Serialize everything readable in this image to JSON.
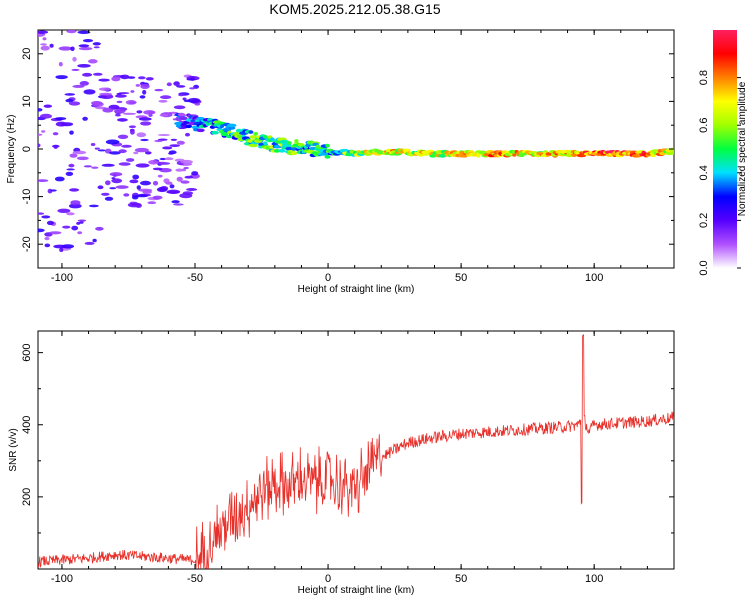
{
  "chart_data": [
    {
      "type": "heatmap",
      "title": "KOM5.2025.212.05.38.G15",
      "xlabel": "Height of straight line (km)",
      "ylabel": "Frequency (Hz)",
      "xlim": [
        -109,
        130
      ],
      "ylim": [
        -25,
        25
      ],
      "xticks": [
        "-100",
        "-50",
        "0",
        "50",
        "100"
      ],
      "yticks": [
        "-20",
        "-10",
        "0",
        "10",
        "20"
      ],
      "colorbar": {
        "label": "Normalized spectral amplitude",
        "range": [
          0,
          1
        ],
        "ticks": [
          "0.0",
          "0.2",
          "0.4",
          "0.6",
          "0.8"
        ],
        "colors": [
          "#ffffff",
          "#b050ff",
          "#5500ff",
          "#0000ff",
          "#00e0ff",
          "#00ff40",
          "#a0ff00",
          "#ffff00",
          "#ff8000",
          "#ff0000",
          "#ff2060"
        ]
      },
      "ridge": {
        "heights_km": [
          -55,
          -45,
          -35,
          -25,
          -15,
          -5,
          0,
          10,
          20,
          40,
          60,
          80,
          100,
          120,
          130
        ],
        "frequency_hz": [
          6,
          5,
          3.5,
          1.5,
          0.5,
          0,
          -0.5,
          -1,
          -0.5,
          -1,
          -1,
          -1,
          -1,
          -1,
          -0.5
        ],
        "amplitude": [
          0.2,
          0.35,
          0.45,
          0.5,
          0.5,
          0.45,
          0.4,
          0.55,
          0.7,
          0.6,
          0.75,
          0.65,
          0.85,
          0.8,
          0.6
        ]
      }
    },
    {
      "type": "line",
      "xlabel": "Height of straight line (km)",
      "ylabel": "SNR (v/v)",
      "xlim": [
        -109,
        130
      ],
      "ylim": [
        0,
        660
      ],
      "xticks": [
        "-100",
        "-50",
        "0",
        "50",
        "100"
      ],
      "yticks": [
        "200",
        "400",
        "600"
      ],
      "color": "#e8302a",
      "x": [
        -109,
        -100,
        -90,
        -80,
        -70,
        -60,
        -52,
        -48,
        -45,
        -40,
        -35,
        -30,
        -25,
        -20,
        -15,
        -10,
        -5,
        0,
        5,
        10,
        15,
        18,
        20,
        25,
        30,
        40,
        50,
        60,
        70,
        80,
        90,
        94,
        96,
        98,
        100,
        110,
        120,
        125,
        130
      ],
      "y": [
        20,
        25,
        30,
        40,
        35,
        30,
        25,
        30,
        70,
        110,
        150,
        180,
        210,
        240,
        230,
        250,
        240,
        250,
        230,
        220,
        270,
        300,
        310,
        330,
        350,
        365,
        375,
        380,
        385,
        390,
        395,
        400,
        420,
        380,
        400,
        405,
        410,
        415,
        420
      ]
    }
  ]
}
